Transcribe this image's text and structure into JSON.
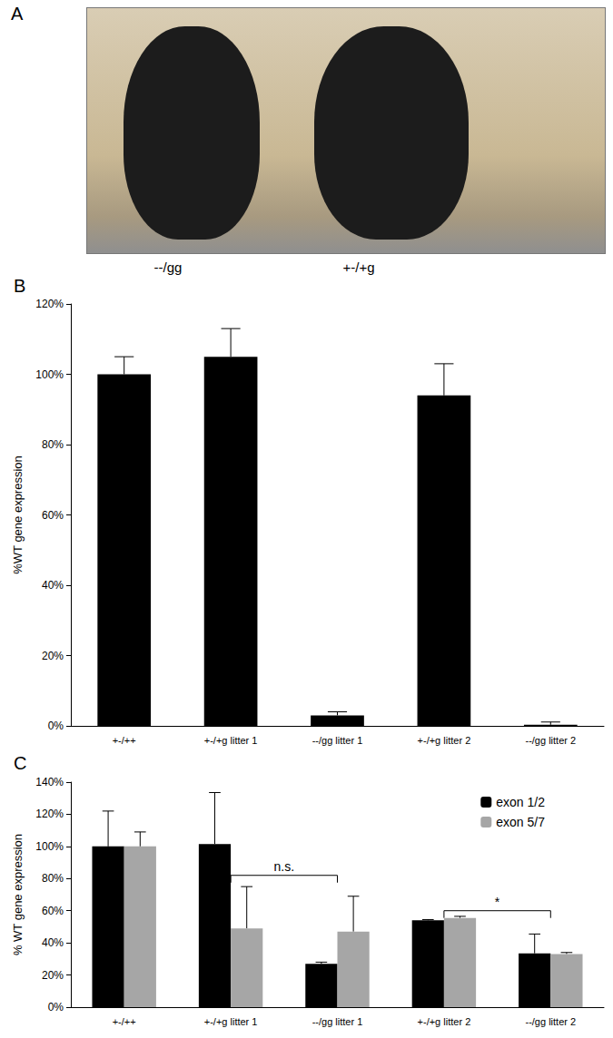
{
  "photo": {
    "label": "A",
    "captions": [
      "--/gg",
      "+-/+g"
    ]
  },
  "chart_data": [
    {
      "type": "bar",
      "title": "B",
      "y_label": "%WT gene expression",
      "categories": [
        "+-/++",
        "+-/+g litter 1",
        "--/gg litter 1",
        "+-/+g litter 2",
        "--/gg litter 2"
      ],
      "values": [
        100,
        105,
        3,
        94,
        0.3
      ],
      "errors": [
        5,
        8,
        1,
        9,
        0.8
      ],
      "color": "#000000",
      "ylim": [
        0,
        120
      ],
      "yticks": [
        {
          "value": 0,
          "label": "0%"
        },
        {
          "value": 20,
          "label": "20%"
        },
        {
          "value": 40,
          "label": "40%"
        },
        {
          "value": 60,
          "label": "60%"
        },
        {
          "value": 80,
          "label": "80%"
        },
        {
          "value": 100,
          "label": "100%"
        },
        {
          "value": 120,
          "label": "120%"
        }
      ],
      "grid": false
    },
    {
      "type": "bar",
      "title": "C",
      "y_label": "% WT gene expression",
      "categories": [
        "+-/++",
        "+-/+g litter 1",
        "--/gg litter 1",
        "+-/+g litter 2",
        "--/gg litter 2"
      ],
      "series": [
        {
          "name": "exon 1/2",
          "color": "#000000",
          "values": [
            100,
            101.5,
            27,
            54,
            33.5
          ],
          "errors": [
            22,
            32,
            1,
            0.5,
            12
          ]
        },
        {
          "name": "exon 5/7",
          "color": "#a6a6a6",
          "values": [
            100,
            49,
            47,
            55.5,
            33
          ],
          "errors": [
            9,
            26,
            22,
            1,
            1
          ]
        }
      ],
      "ylim": [
        0,
        140
      ],
      "yticks": [
        {
          "value": 0,
          "label": "0%"
        },
        {
          "value": 20,
          "label": "20%"
        },
        {
          "value": 40,
          "label": "40%"
        },
        {
          "value": 60,
          "label": "60%"
        },
        {
          "value": 80,
          "label": "80%"
        },
        {
          "value": 100,
          "label": "100%"
        },
        {
          "value": 120,
          "label": "120%"
        },
        {
          "value": 140,
          "label": "140%"
        }
      ],
      "legend": "upper right",
      "grid": false,
      "annotations": [
        {
          "text": "n.s.",
          "from": "+-/+g litter 1",
          "to": "--/gg litter 1",
          "y": 82
        },
        {
          "text": "*",
          "from": "+-/+g litter 2",
          "to": "--/gg litter 2",
          "y": 60
        }
      ]
    }
  ]
}
